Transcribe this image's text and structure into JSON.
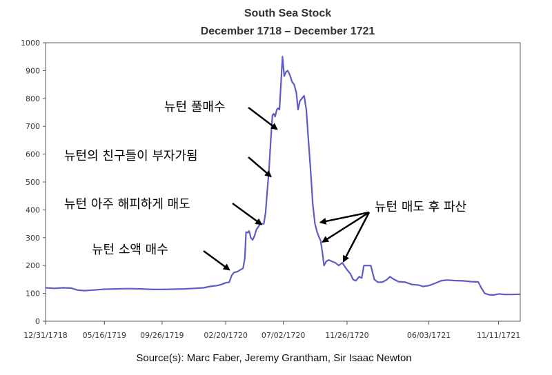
{
  "chart_data": {
    "type": "line",
    "title": "South Sea Stock",
    "subtitle": "December 1718 – December 1721",
    "source": "Source(s): Marc Faber, Jeremy Grantham, Sir Isaac Newton",
    "ylim": [
      0,
      1000
    ],
    "yticks": [
      0,
      100,
      200,
      300,
      400,
      500,
      600,
      700,
      800,
      900,
      1000
    ],
    "xlim": [
      "1718-12-31",
      "1721-12-31"
    ],
    "xticks": [
      {
        "date": "1718-12-31",
        "label": "12/31/1718"
      },
      {
        "date": "1719-05-16",
        "label": "05/16/1719"
      },
      {
        "date": "1719-09-26",
        "label": "09/26/1719"
      },
      {
        "date": "1720-02-20",
        "label": "02/20/1720"
      },
      {
        "date": "1720-07-02",
        "label": "07/02/1720"
      },
      {
        "date": "1720-11-26",
        "label": "11/26/1720"
      },
      {
        "date": "1721-06-03",
        "label": "06/03/1721"
      },
      {
        "date": "1721-11-11",
        "label": "11/11/1721"
      }
    ],
    "grid": false,
    "line_color": "#5c5cc4",
    "series": [
      {
        "points": [
          [
            "1718-12-31",
            120
          ],
          [
            "1719-01-20",
            118
          ],
          [
            "1719-02-10",
            120
          ],
          [
            "1719-02-28",
            119
          ],
          [
            "1719-03-15",
            112
          ],
          [
            "1719-03-31",
            110
          ],
          [
            "1719-04-20",
            112
          ],
          [
            "1719-05-16",
            115
          ],
          [
            "1719-06-10",
            116
          ],
          [
            "1719-07-10",
            117
          ],
          [
            "1719-08-10",
            116
          ],
          [
            "1719-09-05",
            114
          ],
          [
            "1719-09-26",
            114
          ],
          [
            "1719-10-20",
            115
          ],
          [
            "1719-11-15",
            116
          ],
          [
            "1719-12-10",
            118
          ],
          [
            "1719-12-31",
            120
          ],
          [
            "1720-01-15",
            125
          ],
          [
            "1720-01-31",
            128
          ],
          [
            "1720-02-10",
            132
          ],
          [
            "1720-02-20",
            138
          ],
          [
            "1720-02-28",
            140
          ],
          [
            "1720-03-05",
            165
          ],
          [
            "1720-03-10",
            175
          ],
          [
            "1720-03-18",
            178
          ],
          [
            "1720-03-25",
            185
          ],
          [
            "1720-03-31",
            190
          ],
          [
            "1720-04-04",
            225
          ],
          [
            "1720-04-07",
            320
          ],
          [
            "1720-04-11",
            318
          ],
          [
            "1720-04-14",
            324
          ],
          [
            "1720-04-18",
            300
          ],
          [
            "1720-04-22",
            292
          ],
          [
            "1720-04-26",
            305
          ],
          [
            "1720-05-01",
            330
          ],
          [
            "1720-05-06",
            340
          ],
          [
            "1720-05-10",
            352
          ],
          [
            "1720-05-14",
            350
          ],
          [
            "1720-05-18",
            350
          ],
          [
            "1720-05-22",
            390
          ],
          [
            "1720-05-26",
            470
          ],
          [
            "1720-05-30",
            545
          ],
          [
            "1720-06-03",
            650
          ],
          [
            "1720-06-07",
            740
          ],
          [
            "1720-06-10",
            745
          ],
          [
            "1720-06-13",
            735
          ],
          [
            "1720-06-17",
            760
          ],
          [
            "1720-06-20",
            765
          ],
          [
            "1720-06-23",
            760
          ],
          [
            "1720-06-26",
            840
          ],
          [
            "1720-06-30",
            950
          ],
          [
            "1720-07-04",
            880
          ],
          [
            "1720-07-08",
            895
          ],
          [
            "1720-07-12",
            900
          ],
          [
            "1720-07-17",
            885
          ],
          [
            "1720-07-22",
            860
          ],
          [
            "1720-07-27",
            850
          ],
          [
            "1720-08-01",
            820
          ],
          [
            "1720-08-05",
            760
          ],
          [
            "1720-08-09",
            790
          ],
          [
            "1720-08-14",
            800
          ],
          [
            "1720-08-19",
            810
          ],
          [
            "1720-08-24",
            760
          ],
          [
            "1720-08-29",
            650
          ],
          [
            "1720-09-03",
            540
          ],
          [
            "1720-09-08",
            420
          ],
          [
            "1720-09-13",
            350
          ],
          [
            "1720-09-18",
            320
          ],
          [
            "1720-09-23",
            300
          ],
          [
            "1720-09-26",
            290
          ],
          [
            "1720-09-30",
            250
          ],
          [
            "1720-10-04",
            200
          ],
          [
            "1720-10-09",
            215
          ],
          [
            "1720-10-15",
            220
          ],
          [
            "1720-10-22",
            215
          ],
          [
            "1720-10-30",
            210
          ],
          [
            "1720-11-07",
            200
          ],
          [
            "1720-11-15",
            210
          ],
          [
            "1720-11-26",
            185
          ],
          [
            "1720-12-04",
            170
          ],
          [
            "1720-12-10",
            150
          ],
          [
            "1720-12-16",
            145
          ],
          [
            "1720-12-24",
            160
          ],
          [
            "1720-12-30",
            155
          ],
          [
            "1721-01-04",
            200
          ],
          [
            "1721-01-12",
            200
          ],
          [
            "1721-01-20",
            200
          ],
          [
            "1721-01-28",
            150
          ],
          [
            "1721-02-05",
            140
          ],
          [
            "1721-02-15",
            140
          ],
          [
            "1721-02-25",
            148
          ],
          [
            "1721-03-05",
            160
          ],
          [
            "1721-03-15",
            150
          ],
          [
            "1721-03-25",
            142
          ],
          [
            "1721-04-10",
            140
          ],
          [
            "1721-04-25",
            132
          ],
          [
            "1721-05-10",
            130
          ],
          [
            "1721-05-20",
            125
          ],
          [
            "1721-06-03",
            128
          ],
          [
            "1721-06-15",
            135
          ],
          [
            "1721-07-01",
            145
          ],
          [
            "1721-07-15",
            148
          ],
          [
            "1721-08-01",
            146
          ],
          [
            "1721-08-20",
            145
          ],
          [
            "1721-09-10",
            142
          ],
          [
            "1721-09-25",
            141
          ],
          [
            "1721-10-02",
            120
          ],
          [
            "1721-10-10",
            100
          ],
          [
            "1721-10-20",
            95
          ],
          [
            "1721-10-30",
            94
          ],
          [
            "1721-11-11",
            98
          ],
          [
            "1721-11-25",
            96
          ],
          [
            "1721-12-10",
            96
          ],
          [
            "1721-12-31",
            97
          ]
        ]
      }
    ],
    "annotations": [
      {
        "text": "뉴턴 소액 매수",
        "target": [
          "1720-02-28",
          185
        ]
      },
      {
        "text": "뉴턴 아주 해피하게 매도",
        "target": [
          "1720-05-12",
          348
        ]
      },
      {
        "text": "뉴턴의 친구들이 부자가됨",
        "target": [
          "1720-06-03",
          520
        ]
      },
      {
        "text": "뉴턴 풀매수",
        "target": [
          "1720-06-17",
          690
        ]
      },
      {
        "text": "뉴턴 매도 후 파산",
        "targets": [
          [
            "1720-09-26",
            355
          ],
          [
            "1720-10-01",
            285
          ],
          [
            "1720-11-18",
            215
          ]
        ]
      }
    ]
  }
}
